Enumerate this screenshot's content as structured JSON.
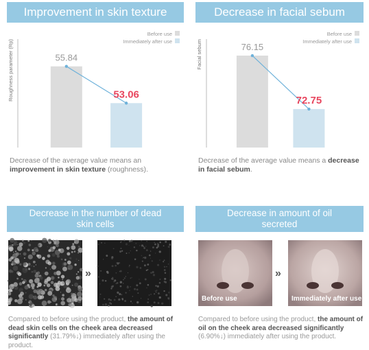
{
  "chart_data": [
    {
      "type": "bar",
      "title": "Improvement in skin texture",
      "y_label": "Roughness parameter (Rp)",
      "categories": [
        null
      ],
      "series": [
        {
          "name": "Before use",
          "color": "#dcdcdc",
          "values": [
            55.84
          ]
        },
        {
          "name": "Immediately after use",
          "color": "#cfe3ef",
          "values": [
            53.06
          ]
        }
      ],
      "ylim": [
        49.7,
        57.9
      ],
      "note": [
        "Decrease of the average value means an ",
        "improvement in skin texture",
        " (roughness)."
      ]
    },
    {
      "type": "bar",
      "title": "Decrease in facial sebum",
      "y_label": "Facial sebum",
      "categories": [
        null
      ],
      "series": [
        {
          "name": "Before use",
          "color": "#dcdcdc",
          "values": [
            76.15
          ]
        },
        {
          "name": "Immediately after use",
          "color": "#cfe3ef",
          "values": [
            72.75
          ]
        }
      ],
      "ylim": [
        70.3,
        77.2
      ],
      "note": [
        "Decrease of the average value means a ",
        "decrease in facial sebum",
        "."
      ]
    }
  ],
  "panels": [
    {
      "title": "Decrease in the number of dead skin cells",
      "separator": "»",
      "description": [
        "Compared to before using the product, ",
        "the amount of dead skin cells on the cheek area decreased significantly",
        " (31.79%↓) immediately after using the product."
      ]
    },
    {
      "title": "Decrease in amount of oil secreted",
      "separator": "»",
      "image_labels": [
        "Before use",
        "Immediately after use"
      ],
      "description": [
        "Compared to before using the product, ",
        "the amount of oil on the cheek area decreased significantly",
        " (6.90%↓) immediately after using the product."
      ]
    }
  ]
}
